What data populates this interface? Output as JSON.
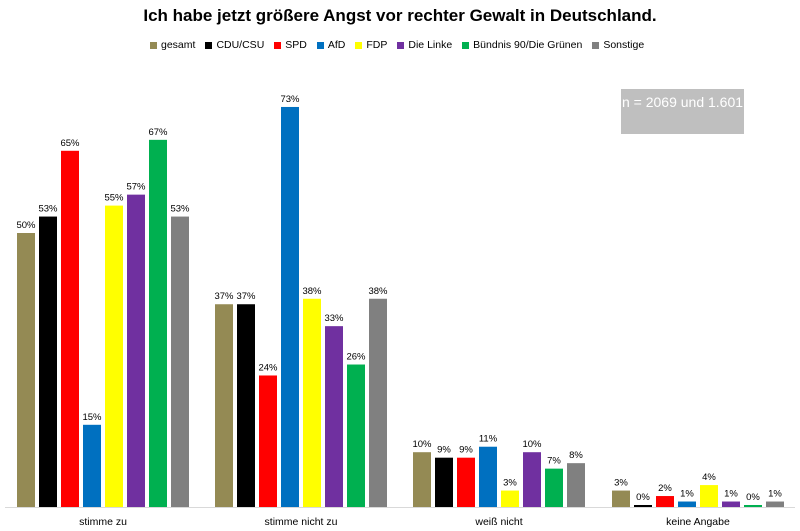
{
  "chart_data": {
    "type": "bar",
    "title": "Ich habe jetzt größere Angst vor rechter Gewalt in Deutschland.",
    "categories": [
      "stimme zu",
      "stimme nicht zu",
      "weiß nicht",
      "keine Angabe"
    ],
    "series": [
      {
        "name": "gesamt",
        "color": "#948a54",
        "values": [
          50,
          37,
          10,
          3
        ]
      },
      {
        "name": "CDU/CSU",
        "color": "#000000",
        "values": [
          53,
          37,
          9,
          0
        ]
      },
      {
        "name": "SPD",
        "color": "#ff0000",
        "values": [
          65,
          24,
          9,
          2
        ]
      },
      {
        "name": "AfD",
        "color": "#0070c0",
        "values": [
          15,
          73,
          11,
          1
        ]
      },
      {
        "name": "FDP",
        "color": "#ffff00",
        "values": [
          55,
          38,
          3,
          4
        ]
      },
      {
        "name": "Die Linke",
        "color": "#7030a0",
        "values": [
          57,
          33,
          10,
          1
        ]
      },
      {
        "name": "Bündnis 90/Die Grünen",
        "color": "#00b050",
        "values": [
          67,
          26,
          7,
          0
        ]
      },
      {
        "name": "Sonstige",
        "color": "#808080",
        "values": [
          53,
          38,
          8,
          1
        ]
      }
    ],
    "value_suffix": "%",
    "ylim": [
      0,
      73
    ],
    "grid": false,
    "legend_position": "top",
    "annotation": "n = 2069 und 1.601"
  }
}
